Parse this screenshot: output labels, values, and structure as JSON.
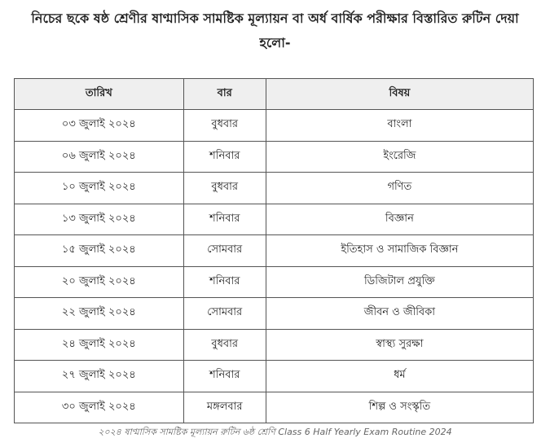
{
  "heading": "নিচের ছকে ষষ্ঠ শ্রেণীর ষাণ্মাসিক সামষ্টিক মূল্যায়ন বা অর্ধ বার্ষিক পরীক্ষার বিস্তারিত রুটিন দেয়া হলো-",
  "table": {
    "headers": [
      "তারিখ",
      "বার",
      "বিষয়"
    ],
    "rows": [
      [
        "০৩ জুলাই ২০২৪",
        "বুধবার",
        "বাংলা"
      ],
      [
        "০৬ জুলাই ২০২৪",
        "শনিবার",
        "ইংরেজি"
      ],
      [
        "১০ জুলাই ২০২৪",
        "বুধবার",
        "গণিত"
      ],
      [
        "১৩ জুলাই ২০২৪",
        "শনিবার",
        "বিজ্ঞান"
      ],
      [
        "১৫ জুলাই ২০২৪",
        "সোমবার",
        "ইতিহাস ও সামাজিক বিজ্ঞান"
      ],
      [
        "২০ জুলাই ২০২৪",
        "শনিবার",
        "ডিজিটাল প্রযুক্তি"
      ],
      [
        "২২ জুলাই ২০২৪",
        "সোমবার",
        "জীবন ও জীবিকা"
      ],
      [
        "২৪ জুলাই ২০২৪",
        "বুধবার",
        "স্বাস্থ্য সুরক্ষা"
      ],
      [
        "২৭ জুলাই ২০২৪",
        "শনিবার",
        "ধর্ম"
      ],
      [
        "৩০ জুলাই ২০২৪",
        "মঙ্গলবার",
        "শিল্প ও সংস্কৃতি"
      ]
    ]
  },
  "caption": "২০২৪ ষাণ্মাসিক সামষ্টিক মূল্যায়ন রুটিন ৬ষ্ঠ শ্রেণি Class 6 Half Yearly Exam Routine 2024"
}
